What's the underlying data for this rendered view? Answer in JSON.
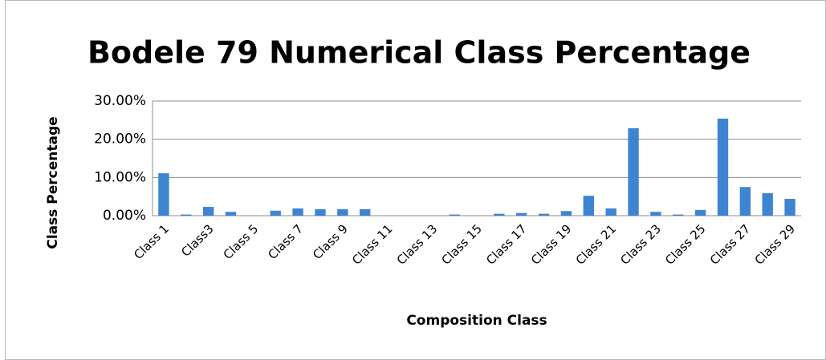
{
  "chart_data": {
    "type": "bar",
    "title": "Bodele 79 Numerical Class Percentage",
    "x_label": "Composition Class",
    "y_label": "Class Percentage",
    "categories": [
      "Class 1",
      null,
      "Class3",
      null,
      "Class 5",
      null,
      "Class 7",
      null,
      "Class 9",
      null,
      "Class 11",
      null,
      "Class 13",
      null,
      "Class 15",
      null,
      "Class 17",
      null,
      "Class 19",
      null,
      "Class 21",
      null,
      "Class 23",
      null,
      "Class 25",
      null,
      "Class 27",
      null,
      "Class 29"
    ],
    "values": [
      11.1,
      0.3,
      2.3,
      1.0,
      0,
      1.3,
      1.9,
      1.7,
      1.7,
      1.7,
      0,
      0,
      0,
      0.3,
      0,
      0.5,
      0.7,
      0.5,
      1.2,
      5.2,
      1.9,
      22.9,
      1.0,
      0.3,
      1.5,
      25.4,
      7.5,
      5.9,
      4.4
    ],
    "color": "#3d85d1",
    "ylim": [
      0,
      30
    ],
    "yticks": [
      {
        "value": 0,
        "label": "0.00%"
      },
      {
        "value": 10,
        "label": "10.00%"
      },
      {
        "value": 20,
        "label": "20.00%"
      },
      {
        "value": 30,
        "label": "30.00%"
      }
    ],
    "grid": true
  }
}
